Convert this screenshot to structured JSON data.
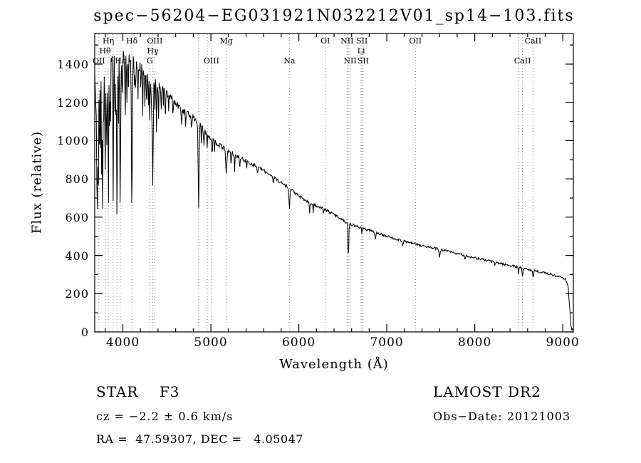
{
  "chart_data": {
    "type": "line",
    "title": "spec−56204−EG031921N032212V01_sp14−103.fits",
    "xlabel": "Wavelength (Å)",
    "ylabel": "Flux (relative)",
    "xlim": [
      3680,
      9120
    ],
    "ylim": [
      0,
      1560
    ],
    "xticks": [
      4000,
      5000,
      6000,
      7000,
      8000,
      9000
    ],
    "yticks": [
      0,
      200,
      400,
      600,
      800,
      1000,
      1200,
      1400
    ],
    "x_minor_step": 200,
    "y_minor_step": 100,
    "line_color": "#000000",
    "marker_line_color": "#8a8a8a",
    "sample_step": 6,
    "spectral_markers": [
      {
        "label": "Hη",
        "wavelength": 3835,
        "row": 1
      },
      {
        "label": "Hδ",
        "wavelength": 4102,
        "row": 1
      },
      {
        "label": "OIII",
        "wavelength": 4363,
        "row": 1
      },
      {
        "label": "Mg",
        "wavelength": 5175,
        "row": 1
      },
      {
        "label": "OI",
        "wavelength": 6300,
        "row": 1
      },
      {
        "label": "NII",
        "wavelength": 6548,
        "row": 1
      },
      {
        "label": "SII",
        "wavelength": 6717,
        "row": 1
      },
      {
        "label": "OII",
        "wavelength": 7325,
        "row": 1
      },
      {
        "label": "CaII",
        "wavelength": 8662,
        "row": 1
      },
      {
        "label": "Hθ",
        "wavelength": 3798,
        "row": 2
      },
      {
        "label": "Hγ",
        "wavelength": 4340,
        "row": 2
      },
      {
        "label": "Li",
        "wavelength": 6708,
        "row": 2
      },
      {
        "label": "OII",
        "wavelength": 3727,
        "row": 3
      },
      {
        "label": "Hε",
        "wavelength": 3970,
        "row": 3
      },
      {
        "label": "G",
        "wavelength": 4305,
        "row": 3
      },
      {
        "label": "OIII",
        "wavelength": 5007,
        "row": 3
      },
      {
        "label": "Na",
        "wavelength": 5893,
        "row": 3
      },
      {
        "label": "NII",
        "wavelength": 6583,
        "row": 3
      },
      {
        "label": "SII",
        "wavelength": 6731,
        "row": 3
      },
      {
        "label": "CaII",
        "wavelength": 8542,
        "row": 3
      }
    ],
    "extra_marker_lines": [
      3889,
      3933,
      4861,
      4959,
      6563,
      8498
    ],
    "continuum": [
      [
        3680,
        1320
      ],
      [
        3720,
        1380
      ],
      [
        3800,
        1410
      ],
      [
        3900,
        1430
      ],
      [
        4000,
        1430
      ],
      [
        4100,
        1420
      ],
      [
        4200,
        1390
      ],
      [
        4300,
        1330
      ],
      [
        4400,
        1300
      ],
      [
        4500,
        1250
      ],
      [
        4600,
        1190
      ],
      [
        4700,
        1150
      ],
      [
        4800,
        1120
      ],
      [
        4900,
        1070
      ],
      [
        5000,
        1010
      ],
      [
        5100,
        975
      ],
      [
        5200,
        945
      ],
      [
        5350,
        905
      ],
      [
        5500,
        870
      ],
      [
        5650,
        830
      ],
      [
        5800,
        780
      ],
      [
        5900,
        750
      ],
      [
        6000,
        710
      ],
      [
        6100,
        680
      ],
      [
        6250,
        650
      ],
      [
        6400,
        615
      ],
      [
        6550,
        570
      ],
      [
        6700,
        545
      ],
      [
        6850,
        525
      ],
      [
        7000,
        500
      ],
      [
        7150,
        480
      ],
      [
        7300,
        462
      ],
      [
        7450,
        445
      ],
      [
        7600,
        432
      ],
      [
        7750,
        415
      ],
      [
        7900,
        398
      ],
      [
        8050,
        382
      ],
      [
        8200,
        368
      ],
      [
        8350,
        352
      ],
      [
        8500,
        338
      ],
      [
        8650,
        322
      ],
      [
        8800,
        308
      ],
      [
        8950,
        290
      ],
      [
        9030,
        278
      ],
      [
        9060,
        240
      ],
      [
        9080,
        120
      ],
      [
        9095,
        15
      ],
      [
        9120,
        8
      ]
    ],
    "absorption_lines": [
      [
        3705,
        420,
        5
      ],
      [
        3712,
        480,
        5
      ],
      [
        3722,
        560,
        5
      ],
      [
        3734,
        500,
        4
      ],
      [
        3745,
        520,
        4
      ],
      [
        3760,
        640,
        4
      ],
      [
        3770,
        730,
        5
      ],
      [
        3780,
        400,
        4
      ],
      [
        3798,
        650,
        5
      ],
      [
        3810,
        350,
        4
      ],
      [
        3820,
        500,
        4
      ],
      [
        3835,
        730,
        5
      ],
      [
        3850,
        380,
        4
      ],
      [
        3860,
        300,
        4
      ],
      [
        3889,
        760,
        5
      ],
      [
        3910,
        300,
        4
      ],
      [
        3920,
        250,
        4
      ],
      [
        3933,
        830,
        6
      ],
      [
        3950,
        320,
        4
      ],
      [
        3970,
        810,
        6
      ],
      [
        3995,
        280,
        4
      ],
      [
        4026,
        330,
        4
      ],
      [
        4045,
        220,
        4
      ],
      [
        4063,
        180,
        4
      ],
      [
        4102,
        820,
        7
      ],
      [
        4132,
        180,
        4
      ],
      [
        4144,
        200,
        4
      ],
      [
        4172,
        190,
        4
      ],
      [
        4205,
        150,
        4
      ],
      [
        4226,
        270,
        4
      ],
      [
        4250,
        160,
        4
      ],
      [
        4271,
        200,
        4
      ],
      [
        4290,
        180,
        4
      ],
      [
        4305,
        260,
        5
      ],
      [
        4326,
        200,
        4
      ],
      [
        4340,
        570,
        7
      ],
      [
        4363,
        180,
        4
      ],
      [
        4383,
        300,
        4
      ],
      [
        4405,
        170,
        4
      ],
      [
        4435,
        120,
        4
      ],
      [
        4460,
        110,
        4
      ],
      [
        4481,
        170,
        4
      ],
      [
        4520,
        90,
        4
      ],
      [
        4571,
        90,
        4
      ],
      [
        4668,
        110,
        4
      ],
      [
        4713,
        80,
        4
      ],
      [
        4780,
        80,
        4
      ],
      [
        4861,
        440,
        7
      ],
      [
        4891,
        90,
        4
      ],
      [
        4920,
        110,
        4
      ],
      [
        4957,
        70,
        4
      ],
      [
        5015,
        90,
        4
      ],
      [
        5041,
        70,
        4
      ],
      [
        5175,
        115,
        10
      ],
      [
        5230,
        60,
        5
      ],
      [
        5270,
        80,
        5
      ],
      [
        5328,
        50,
        5
      ],
      [
        5406,
        45,
        4
      ],
      [
        5530,
        40,
        5
      ],
      [
        5711,
        35,
        5
      ],
      [
        5893,
        115,
        7
      ],
      [
        6122,
        55,
        5
      ],
      [
        6163,
        45,
        4
      ],
      [
        6280,
        25,
        4
      ],
      [
        6563,
        185,
        7
      ],
      [
        6717,
        25,
        5
      ],
      [
        6870,
        45,
        8
      ],
      [
        7180,
        25,
        6
      ],
      [
        7600,
        40,
        9
      ],
      [
        7890,
        20,
        6
      ],
      [
        8230,
        20,
        6
      ],
      [
        8498,
        32,
        5
      ],
      [
        8542,
        48,
        6
      ],
      [
        8662,
        42,
        6
      ]
    ],
    "noise": {
      "seed": 13,
      "base": 6,
      "scale": 58,
      "decay": 650,
      "left_boost": 130,
      "left_edge": 3800
    }
  },
  "annotations": {
    "class_label": "STAR    F3",
    "survey": "LAMOST DR2",
    "velocity": "cz = −2.2 ± 0.6 km/s",
    "obs_date": "Obs−Date: 20121003",
    "coordinates": "RA =  47.59307, DEC =   4.05047"
  }
}
